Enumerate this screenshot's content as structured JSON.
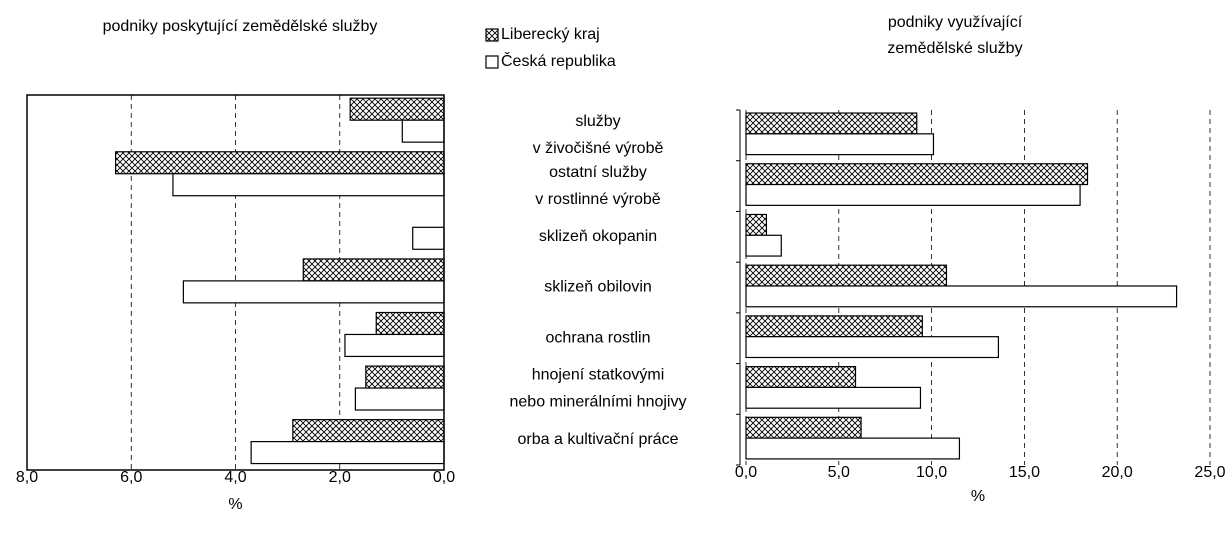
{
  "chart_data": [
    {
      "type": "barh",
      "title": "podniky poskytující zemědělské služby",
      "xlabel": "%",
      "categories": [
        [
          "služby",
          "v živočišné výrobě"
        ],
        [
          "ostatní služby",
          "v rostlinné výrobě"
        ],
        [
          "sklizeň okopanin"
        ],
        [
          "sklizeň obilovin"
        ],
        [
          "ochrana rostlin"
        ],
        [
          "hnojení statkovými",
          "nebo minerálními hnojivy"
        ],
        [
          "orba a kultivační práce"
        ]
      ],
      "series": [
        {
          "name": "Liberecký kraj",
          "pattern": "crosshatch",
          "color": "#000000",
          "values": [
            1.8,
            6.3,
            0,
            2.7,
            1.3,
            1.5,
            2.9
          ]
        },
        {
          "name": "Česká republika",
          "pattern": "none",
          "color": "#000000",
          "values": [
            0.8,
            5.2,
            0.6,
            5.0,
            1.9,
            1.7,
            3.7
          ]
        }
      ],
      "xlim": [
        8,
        0
      ],
      "xticks": [
        {
          "value": 8,
          "label": "8,0"
        },
        {
          "value": 6,
          "label": "6,0"
        },
        {
          "value": 4,
          "label": "4,0"
        },
        {
          "value": 2,
          "label": "2,0"
        },
        {
          "value": 0,
          "label": "0,0"
        }
      ],
      "grid": true
    },
    {
      "type": "barh",
      "title": "podniky využívající zemědělské služby",
      "xlabel": "%",
      "series": [
        {
          "pattern": "crosshatch",
          "color": "#000000",
          "values": [
            9.2,
            18.4,
            1.1,
            10.8,
            9.5,
            5.9,
            6.2
          ]
        },
        {
          "pattern": "none",
          "color": "#000000",
          "values": [
            10.1,
            18.0,
            1.9,
            23.2,
            13.6,
            9.4,
            11.5
          ]
        }
      ],
      "xlim": [
        0,
        25
      ],
      "xticks": [
        {
          "value": 0,
          "label": "0,0"
        },
        {
          "value": 5,
          "label": "5,0"
        },
        {
          "value": 10,
          "label": "10,0"
        },
        {
          "value": 15,
          "label": "15,0"
        },
        {
          "value": 20,
          "label": "20,0"
        },
        {
          "value": 25,
          "label": "25,0"
        }
      ],
      "grid": true
    }
  ]
}
